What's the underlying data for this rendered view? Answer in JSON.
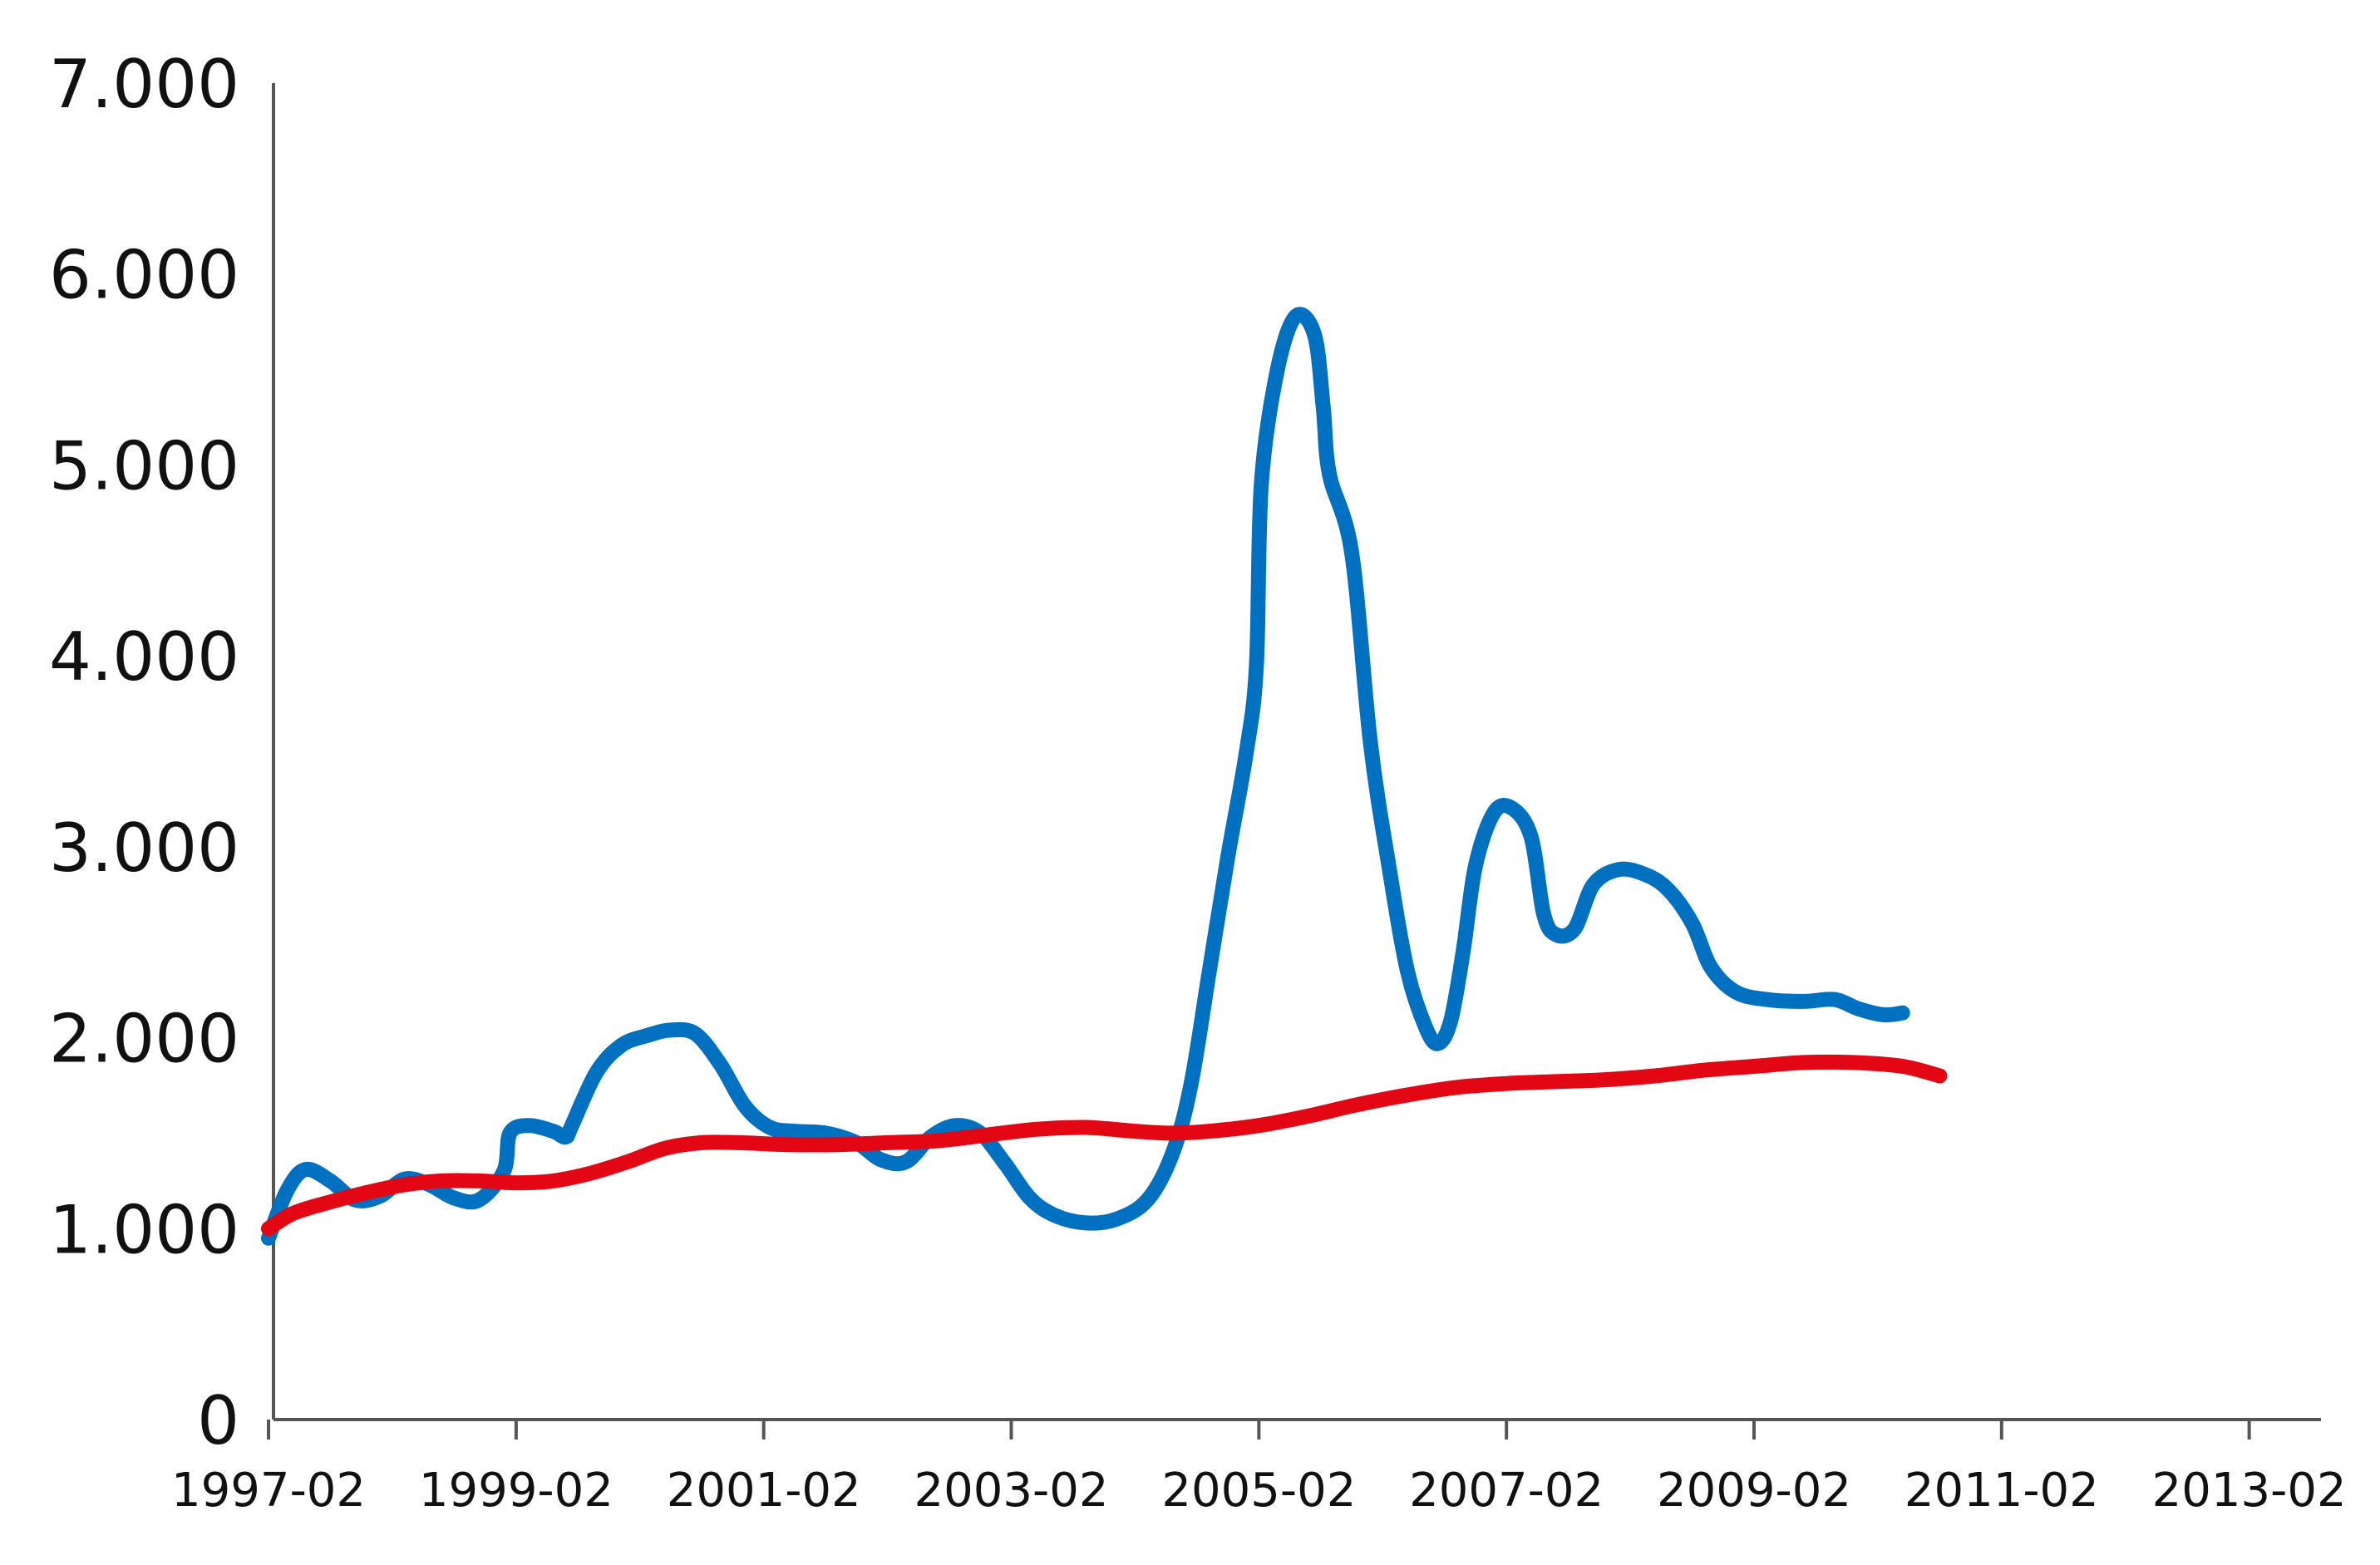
{
  "chart_data": {
    "type": "line",
    "title": "",
    "xlabel": "",
    "ylabel": "",
    "grid": false,
    "legend": "none",
    "x_range": [
      1997.04,
      2013.58
    ],
    "ylim": [
      0,
      7000
    ],
    "y_ticks": [
      0,
      1000,
      2000,
      3000,
      4000,
      5000,
      6000,
      7000
    ],
    "y_tick_labels": [
      "0",
      "1.000",
      "2.000",
      "3.000",
      "4.000",
      "5.000",
      "6.000",
      "7.000"
    ],
    "x_tick_values": [
      1997.0,
      1999.0,
      2001.0,
      2003.0,
      2005.0,
      2007.0,
      2009.0,
      2011.0,
      2013.0
    ],
    "x_tick_labels": [
      "1997-02",
      "1999-02",
      "2001-02",
      "2003-02",
      "2005-02",
      "2007-02",
      "2009-02",
      "2011-02",
      "2013-02"
    ],
    "series": [
      {
        "color": "#0070C0",
        "points": [
          [
            1997.0,
            950
          ],
          [
            1997.15,
            1200
          ],
          [
            1997.3,
            1310
          ],
          [
            1997.5,
            1250
          ],
          [
            1997.7,
            1150
          ],
          [
            1997.9,
            1170
          ],
          [
            1998.1,
            1260
          ],
          [
            1998.3,
            1230
          ],
          [
            1998.5,
            1160
          ],
          [
            1998.7,
            1150
          ],
          [
            1998.9,
            1300
          ],
          [
            1998.95,
            1500
          ],
          [
            1999.1,
            1540
          ],
          [
            1999.3,
            1510
          ],
          [
            1999.4,
            1480
          ],
          [
            1999.45,
            1540
          ],
          [
            1999.65,
            1820
          ],
          [
            1999.85,
            1960
          ],
          [
            2000.05,
            2010
          ],
          [
            2000.25,
            2040
          ],
          [
            2000.45,
            2020
          ],
          [
            2000.65,
            1860
          ],
          [
            2000.85,
            1640
          ],
          [
            2001.05,
            1530
          ],
          [
            2001.25,
            1510
          ],
          [
            2001.5,
            1500
          ],
          [
            2001.75,
            1450
          ],
          [
            2001.95,
            1360
          ],
          [
            2002.15,
            1350
          ],
          [
            2002.35,
            1480
          ],
          [
            2002.55,
            1540
          ],
          [
            2002.75,
            1500
          ],
          [
            2002.95,
            1340
          ],
          [
            2003.15,
            1160
          ],
          [
            2003.35,
            1070
          ],
          [
            2003.6,
            1030
          ],
          [
            2003.85,
            1050
          ],
          [
            2004.1,
            1150
          ],
          [
            2004.3,
            1390
          ],
          [
            2004.45,
            1750
          ],
          [
            2004.6,
            2350
          ],
          [
            2004.75,
            2950
          ],
          [
            2004.9,
            3500
          ],
          [
            2004.98,
            3950
          ],
          [
            2005.02,
            4900
          ],
          [
            2005.15,
            5500
          ],
          [
            2005.3,
            5780
          ],
          [
            2005.45,
            5680
          ],
          [
            2005.52,
            5300
          ],
          [
            2005.57,
            4950
          ],
          [
            2005.75,
            4540
          ],
          [
            2005.9,
            3550
          ],
          [
            2006.05,
            2900
          ],
          [
            2006.2,
            2350
          ],
          [
            2006.35,
            2050
          ],
          [
            2006.45,
            1970
          ],
          [
            2006.55,
            2090
          ],
          [
            2006.65,
            2450
          ],
          [
            2006.75,
            2900
          ],
          [
            2006.9,
            3180
          ],
          [
            2007.05,
            3200
          ],
          [
            2007.2,
            3050
          ],
          [
            2007.3,
            2650
          ],
          [
            2007.4,
            2540
          ],
          [
            2007.55,
            2570
          ],
          [
            2007.7,
            2800
          ],
          [
            2007.9,
            2880
          ],
          [
            2008.1,
            2860
          ],
          [
            2008.3,
            2780
          ],
          [
            2008.5,
            2600
          ],
          [
            2008.65,
            2370
          ],
          [
            2008.85,
            2240
          ],
          [
            2009.1,
            2200
          ],
          [
            2009.4,
            2190
          ],
          [
            2009.65,
            2200
          ],
          [
            2009.85,
            2150
          ],
          [
            2010.05,
            2120
          ],
          [
            2010.2,
            2130
          ]
        ]
      },
      {
        "color": "#E30613",
        "points": [
          [
            1997.0,
            1000
          ],
          [
            1997.2,
            1080
          ],
          [
            1997.5,
            1140
          ],
          [
            1997.8,
            1190
          ],
          [
            1998.1,
            1230
          ],
          [
            1998.4,
            1250
          ],
          [
            1998.7,
            1250
          ],
          [
            1999.0,
            1240
          ],
          [
            1999.3,
            1250
          ],
          [
            1999.6,
            1290
          ],
          [
            1999.9,
            1350
          ],
          [
            2000.2,
            1420
          ],
          [
            2000.5,
            1450
          ],
          [
            2000.8,
            1450
          ],
          [
            2001.2,
            1440
          ],
          [
            2001.6,
            1440
          ],
          [
            2002.0,
            1450
          ],
          [
            2002.4,
            1460
          ],
          [
            2002.8,
            1490
          ],
          [
            2003.2,
            1520
          ],
          [
            2003.6,
            1530
          ],
          [
            2004.0,
            1510
          ],
          [
            2004.3,
            1500
          ],
          [
            2004.6,
            1510
          ],
          [
            2005.0,
            1540
          ],
          [
            2005.4,
            1590
          ],
          [
            2005.8,
            1650
          ],
          [
            2006.2,
            1700
          ],
          [
            2006.6,
            1740
          ],
          [
            2007.0,
            1760
          ],
          [
            2007.4,
            1770
          ],
          [
            2007.8,
            1780
          ],
          [
            2008.2,
            1800
          ],
          [
            2008.6,
            1830
          ],
          [
            2009.0,
            1850
          ],
          [
            2009.4,
            1870
          ],
          [
            2009.8,
            1870
          ],
          [
            2010.2,
            1850
          ],
          [
            2010.5,
            1800
          ]
        ]
      }
    ]
  }
}
